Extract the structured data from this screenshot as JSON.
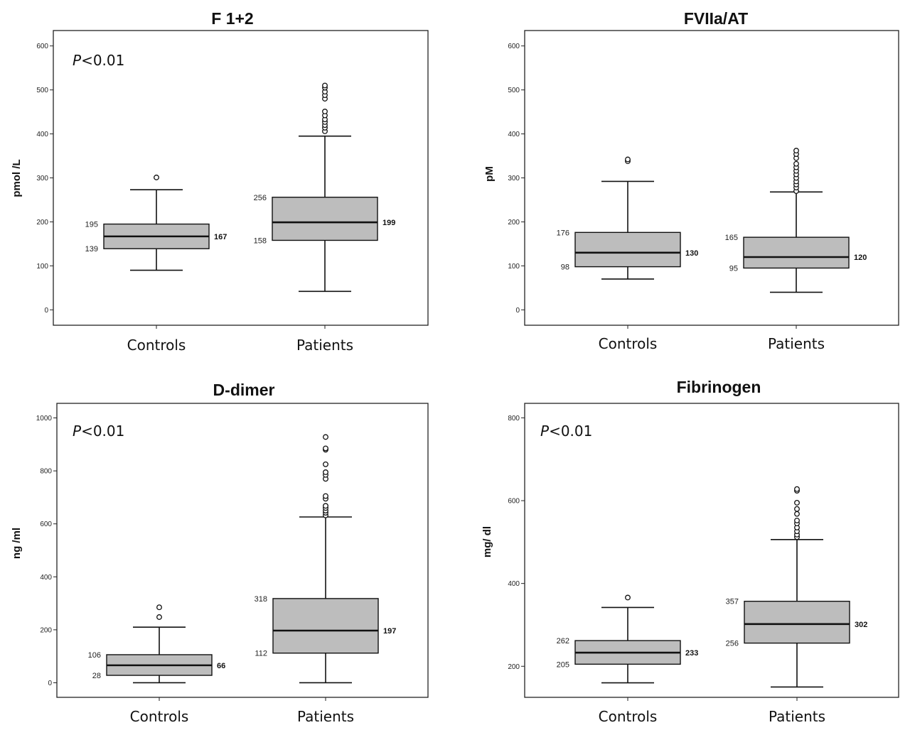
{
  "chart_data": [
    {
      "type": "boxplot",
      "title": "F 1+2",
      "ylabel": "pmol /L",
      "pvalue_prefix": "P",
      "pvalue_rest": "<0.01",
      "ylim": [
        -35,
        635
      ],
      "yticks": [
        0,
        100,
        200,
        300,
        400,
        500,
        600
      ],
      "categories": [
        "Controls",
        "Patients"
      ],
      "boxes": [
        {
          "category": "Controls",
          "whisker_low": 90,
          "q1": 139,
          "median": 167,
          "q3": 195,
          "whisker_high": 273,
          "q1_label": "139",
          "median_label": "167",
          "q3_label": "195",
          "outliers": [
            301
          ]
        },
        {
          "category": "Patients",
          "whisker_low": 42,
          "q1": 158,
          "median": 199,
          "q3": 256,
          "whisker_high": 395,
          "q1_label": "158",
          "median_label": "199",
          "q3_label": "256",
          "outliers": [
            406,
            414,
            420,
            427,
            433,
            442,
            451,
            480,
            488,
            496,
            505,
            510
          ]
        }
      ]
    },
    {
      "type": "boxplot",
      "title": "FVIIa/AT",
      "ylabel": "pM",
      "pvalue_prefix": "",
      "pvalue_rest": "",
      "ylim": [
        -35,
        635
      ],
      "yticks": [
        0,
        100,
        200,
        300,
        400,
        500,
        600
      ],
      "categories": [
        "Controls",
        "Patients"
      ],
      "boxes": [
        {
          "category": "Controls",
          "whisker_low": 70,
          "q1": 98,
          "median": 130,
          "q3": 176,
          "whisker_high": 292,
          "q1_label": "98",
          "median_label": "130",
          "q3_label": "176",
          "outliers": [
            338,
            342
          ]
        },
        {
          "category": "Patients",
          "whisker_low": 40,
          "q1": 95,
          "median": 120,
          "q3": 165,
          "whisker_high": 268,
          "q1_label": "95",
          "median_label": "120",
          "q3_label": "165",
          "outliers": [
            270,
            278,
            285,
            292,
            300,
            308,
            316,
            324,
            332,
            345,
            354,
            362
          ]
        }
      ]
    },
    {
      "type": "boxplot",
      "title": "D-dimer",
      "ylabel": "ng /ml",
      "pvalue_prefix": "P",
      "pvalue_rest": "<0.01",
      "ylim": [
        -55,
        1055
      ],
      "yticks": [
        0,
        200,
        400,
        600,
        800,
        1000
      ],
      "categories": [
        "Controls",
        "Patients"
      ],
      "boxes": [
        {
          "category": "Controls",
          "whisker_low": 0,
          "q1": 28,
          "median": 66,
          "q3": 106,
          "whisker_high": 210,
          "q1_label": "28",
          "median_label": "66",
          "q3_label": "106",
          "outliers": [
            248,
            285
          ]
        },
        {
          "category": "Patients",
          "whisker_low": 0,
          "q1": 112,
          "median": 197,
          "q3": 318,
          "whisker_high": 626,
          "q1_label": "112",
          "median_label": "197",
          "q3_label": "318",
          "outliers": [
            632,
            642,
            650,
            660,
            668,
            695,
            705,
            770,
            785,
            795,
            825,
            880,
            885,
            928
          ]
        }
      ]
    },
    {
      "type": "boxplot",
      "title": "Fibrinogen",
      "ylabel": "mg/ dl",
      "pvalue_prefix": "P",
      "pvalue_rest": "<0.01",
      "ylim": [
        125,
        835
      ],
      "yticks": [
        200,
        400,
        600,
        800
      ],
      "categories": [
        "Controls",
        "Patients"
      ],
      "boxes": [
        {
          "category": "Controls",
          "whisker_low": 160,
          "q1": 205,
          "median": 233,
          "q3": 262,
          "whisker_high": 342,
          "q1_label": "205",
          "median_label": "233",
          "q3_label": "262",
          "outliers": [
            366
          ]
        },
        {
          "category": "Patients",
          "whisker_low": 150,
          "q1": 256,
          "median": 302,
          "q3": 357,
          "whisker_high": 506,
          "q1_label": "256",
          "median_label": "302",
          "q3_label": "357",
          "outliers": [
            512,
            518,
            526,
            535,
            545,
            552,
            568,
            580,
            595,
            624,
            628
          ]
        }
      ]
    }
  ],
  "colors": {
    "box_fill": "#bdbdbd",
    "line": "#111111",
    "frame": "#222222"
  }
}
